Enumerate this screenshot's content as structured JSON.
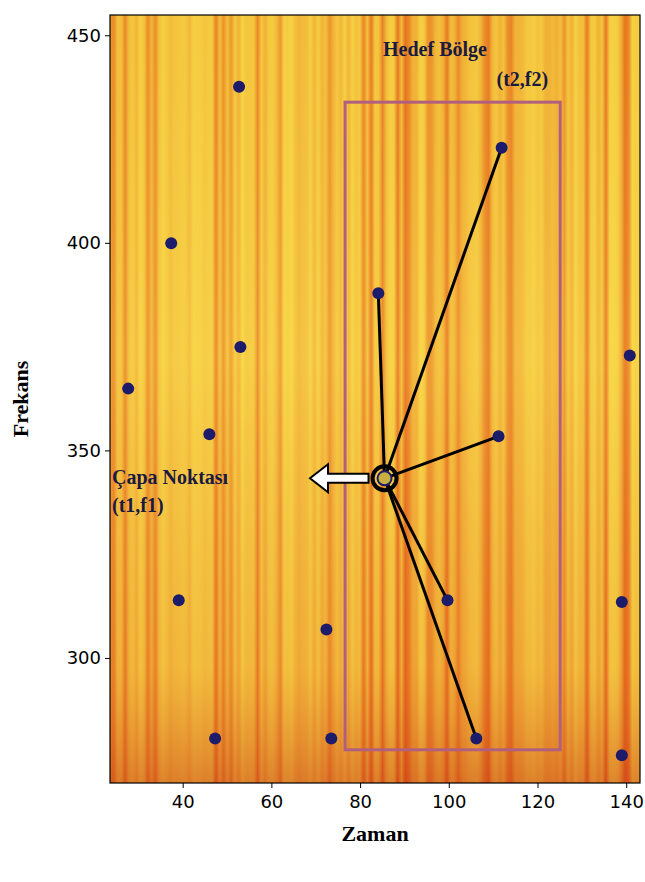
{
  "chart_data": {
    "type": "scatter",
    "x_label": "Zaman",
    "y_label": "Frekans",
    "x": [
      52.6,
      37.3,
      52.9,
      27.6,
      45.9,
      39.0,
      72.3,
      47.2,
      73.4,
      84.0,
      85.4,
      111.8,
      111.1,
      99.6,
      106.1,
      140.7,
      138.9,
      138.9
    ],
    "y": [
      437.7,
      400.0,
      375.0,
      365.0,
      354.0,
      314.0,
      307.0,
      280.7,
      280.7,
      388.0,
      343.4,
      423.0,
      353.5,
      314.0,
      280.7,
      373.0,
      313.6,
      276.7
    ],
    "color": "#1c1c6b",
    "marker": "circle",
    "xlim": [
      23.5,
      143
    ],
    "ylim": [
      270,
      455
    ],
    "xticks": [
      40,
      60,
      80,
      100,
      120,
      140
    ],
    "yticks": [
      300,
      350,
      400,
      450
    ],
    "grid": false,
    "anchor": {
      "index": 10,
      "label": "Çapa Noktası",
      "coords": "(t1,f1)"
    },
    "target_region": {
      "label": "Hedef Bölge",
      "coords": "(t2,f2)",
      "x": [
        76.5,
        125
      ],
      "y": [
        278,
        434
      ],
      "point_indices": [
        9,
        11,
        12,
        13,
        14
      ]
    }
  }
}
